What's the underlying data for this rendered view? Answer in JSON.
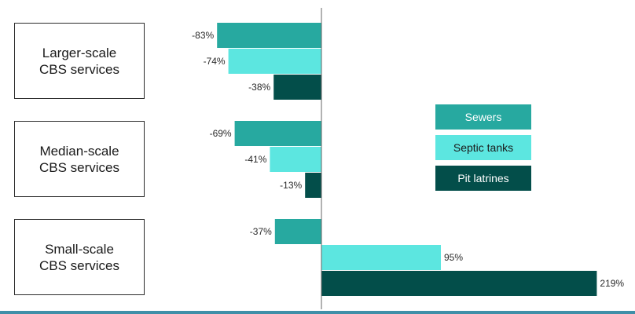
{
  "chart_data": {
    "type": "bar",
    "orientation": "horizontal",
    "title": "",
    "xlabel": "",
    "ylabel": "",
    "categories": [
      "Larger-scale\nCBS services",
      "Median-scale\nCBS services",
      "Small-scale\nCBS services"
    ],
    "series": [
      {
        "name": "Sewers",
        "values": [
          -83,
          -69,
          -37
        ],
        "labels": [
          "-83%",
          "-69%",
          "-37%"
        ],
        "color": "#27a9a0"
      },
      {
        "name": "Septic tanks",
        "values": [
          -74,
          -41,
          95
        ],
        "labels": [
          "-74%",
          "-41%",
          "95%"
        ],
        "color": "#5ce6e0"
      },
      {
        "name": "Pit latrines",
        "values": [
          -38,
          -13,
          219
        ],
        "labels": [
          "-38%",
          "-13%",
          "219%"
        ],
        "color": "#034e4a"
      }
    ],
    "xlim": [
      -100,
      220
    ],
    "unit": "%",
    "grid": false,
    "legend_position": "center-right",
    "legend_text_colors": [
      "#ffffff",
      "#1a1a1a",
      "#ffffff"
    ]
  }
}
